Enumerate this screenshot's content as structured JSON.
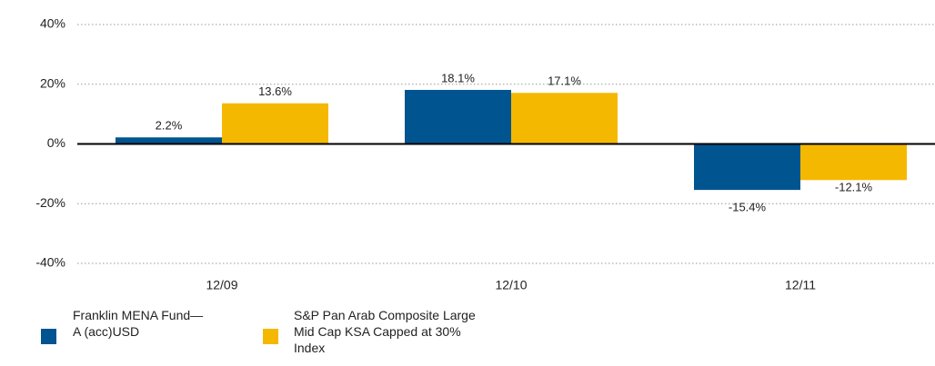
{
  "chart_data": {
    "type": "bar",
    "categories": [
      "12/09",
      "12/10",
      "12/11"
    ],
    "series": [
      {
        "name": "Franklin MENA Fund—A (acc)USD",
        "color": "#00548f",
        "values": [
          2.2,
          18.1,
          -15.4
        ],
        "value_labels": [
          "2.2%",
          "18.1%",
          "-15.4%"
        ]
      },
      {
        "name": "S&P Pan Arab Composite Large Mid Cap KSA Capped at 30% Index",
        "color": "#f5b800",
        "values": [
          13.6,
          17.1,
          -12.1
        ],
        "value_labels": [
          "13.6%",
          "17.1%",
          "-12.1%"
        ]
      }
    ],
    "ylim": [
      -40,
      40
    ],
    "yticks": [
      {
        "value": -40,
        "label": "-40%"
      },
      {
        "value": -20,
        "label": "-20%"
      },
      {
        "value": 0,
        "label": "0%"
      },
      {
        "value": 20,
        "label": "20%"
      },
      {
        "value": 40,
        "label": "40%"
      }
    ],
    "grid": true
  }
}
